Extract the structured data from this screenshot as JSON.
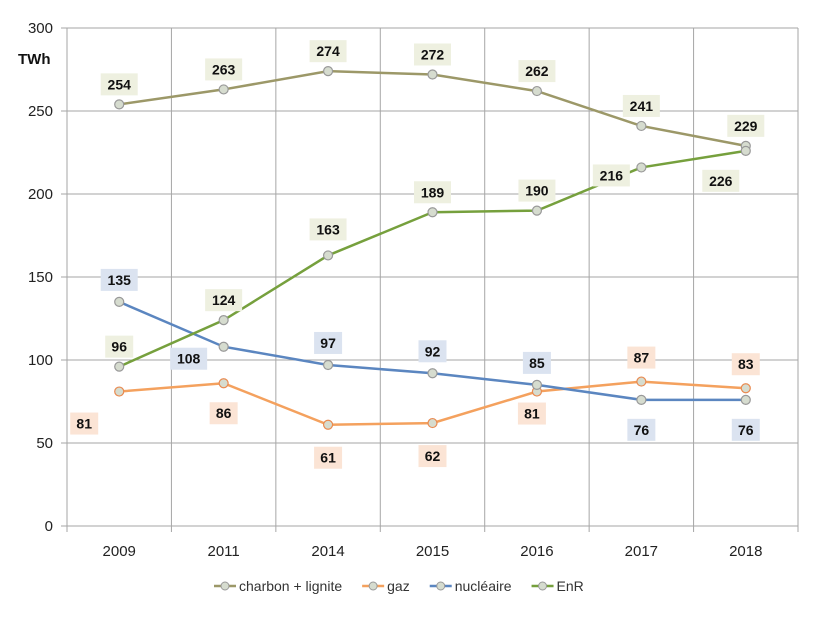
{
  "chart_data": {
    "type": "line",
    "ylabel": "TWh",
    "categories": [
      "2009",
      "2011",
      "2014",
      "2015",
      "2016",
      "2017",
      "2018"
    ],
    "ylim": [
      0,
      300
    ],
    "yticks": [
      0,
      50,
      100,
      150,
      200,
      250,
      300
    ],
    "grid": true,
    "legend": "bottom",
    "series": [
      {
        "name": "charbon + lignite",
        "values": [
          254,
          263,
          274,
          272,
          262,
          241,
          229
        ],
        "color": "#9c9868",
        "label_bg": "#eef0e0"
      },
      {
        "name": "gaz",
        "values": [
          81,
          86,
          61,
          62,
          81,
          87,
          83
        ],
        "color": "#f4a15e",
        "label_bg": "#fbe4d5"
      },
      {
        "name": "nucléaire",
        "values": [
          135,
          108,
          97,
          92,
          85,
          76,
          76
        ],
        "color": "#5b86c0",
        "label_bg": "#dbe3f0"
      },
      {
        "name": "EnR",
        "values": [
          96,
          124,
          163,
          189,
          190,
          216,
          226
        ],
        "color": "#76a03d",
        "label_bg": "#eef0e0"
      }
    ]
  }
}
